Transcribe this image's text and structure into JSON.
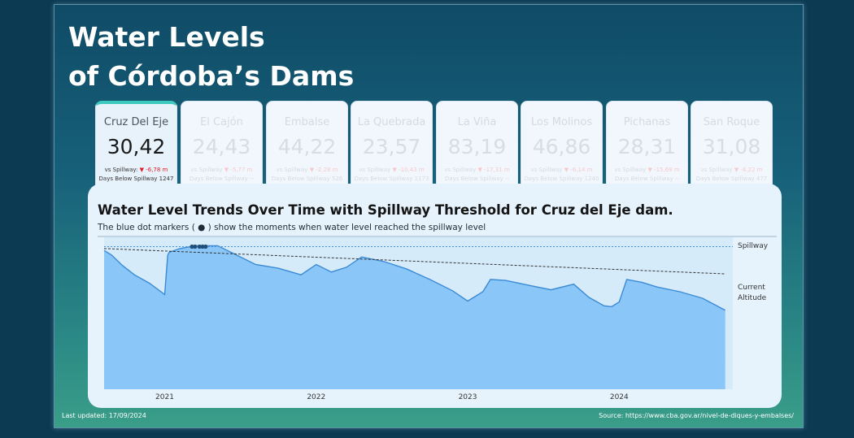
{
  "title": {
    "line1": "Water Levels",
    "line2": "of Córdoba’s Dams"
  },
  "dams": [
    {
      "name": "Cruz Del Eje",
      "value": "30,42",
      "vs_label": "vs Spillway:",
      "vs_value": "▼ -6,78 m",
      "days_label": "Days Below Spillway",
      "days_value": "1247",
      "active": true
    },
    {
      "name": "El Cajón",
      "value": "24,43",
      "vs_label": "vs Spillway",
      "vs_value": "▼ -5,77 m",
      "days_label": "Days Below Spillway",
      "days_value": "--",
      "active": false
    },
    {
      "name": "Embalse",
      "value": "44,22",
      "vs_label": "vs Spillway",
      "vs_value": "▼ -2,28 m",
      "days_label": "Days Below Spillway",
      "days_value": "526",
      "active": false
    },
    {
      "name": "La Quebrada",
      "value": "23,57",
      "vs_label": "vs Spillway",
      "vs_value": "▼ -10,43 m",
      "days_label": "Days Below Spillway",
      "days_value": "1173",
      "active": false
    },
    {
      "name": "La Viña",
      "value": "83,19",
      "vs_label": "vs Spillway",
      "vs_value": "▼ -17,31 m",
      "days_label": "Days Below Spillway",
      "days_value": "--",
      "active": false
    },
    {
      "name": "Los Molinos",
      "value": "46,86",
      "vs_label": "vs Spillway",
      "vs_value": "▼ -6,14 m",
      "days_label": "Days Below Spillway",
      "days_value": "1240",
      "active": false
    },
    {
      "name": "Pichanas",
      "value": "28,31",
      "vs_label": "vs Spillway",
      "vs_value": "▼ -15,69 m",
      "days_label": "Days Below Spillway",
      "days_value": "--",
      "active": false
    },
    {
      "name": "San Roque",
      "value": "31,08",
      "vs_label": "vs Spillway",
      "vs_value": "▼ -4,22 m",
      "days_label": "Days Below Spillway",
      "days_value": "477",
      "active": false
    }
  ],
  "chart": {
    "title": "Water Level Trends Over Time with Spillway Threshold for Cruz del Eje dam.",
    "subtitle": "The blue dot markers ( ● ) show the moments when water level reached the spillway level",
    "spillway_label": "Spillway",
    "current_label_1": "Current",
    "current_label_2": "Altitude"
  },
  "chart_data": {
    "type": "area",
    "x": [
      2020.6,
      2020.65,
      2020.72,
      2020.8,
      2020.9,
      2021.0,
      2021.02,
      2021.03,
      2021.1,
      2021.2,
      2021.35,
      2021.45,
      2021.6,
      2021.75,
      2021.9,
      2022.0,
      2022.1,
      2022.2,
      2022.3,
      2022.45,
      2022.6,
      2022.75,
      2022.9,
      2023.0,
      2023.1,
      2023.15,
      2023.25,
      2023.4,
      2023.55,
      2023.7,
      2023.8,
      2023.9,
      2023.95,
      2024.0,
      2024.05,
      2024.15,
      2024.25,
      2024.4,
      2024.55,
      2024.7
    ],
    "values": [
      36.8,
      36.3,
      35.2,
      34.2,
      33.3,
      32.1,
      36.3,
      36.6,
      37.0,
      37.3,
      37.3,
      36.5,
      35.3,
      34.9,
      34.2,
      35.3,
      34.5,
      35.0,
      36.1,
      35.6,
      34.8,
      33.7,
      32.5,
      31.4,
      32.4,
      33.7,
      33.6,
      33.1,
      32.6,
      33.2,
      31.8,
      30.9,
      30.8,
      31.3,
      33.7,
      33.4,
      32.9,
      32.4,
      31.7,
      30.42
    ],
    "spillway": 37.2,
    "trend": [
      [
        2020.6,
        37.0
      ],
      [
        2024.7,
        34.3
      ]
    ],
    "spillway_markers": [
      2021.18,
      2021.2,
      2021.23,
      2021.25,
      2021.27
    ],
    "x_ticks": [
      2021,
      2022,
      2023,
      2024
    ],
    "xlim": [
      2020.6,
      2024.75
    ],
    "ylim": [
      22.0,
      38.2
    ]
  },
  "footer": {
    "updated": "Last updated: 17/09/2024",
    "source": "Source: https://www.cba.gov.ar/nivel-de-diques-y-embalses/"
  },
  "colors": {
    "area_fill": "#8ac6f7",
    "area_line": "#3a8bd6",
    "spillway_line": "#4a90d9",
    "trend_line": "#333333",
    "marker": "#1f4e79",
    "accent": "#3ec9be",
    "down": "#e31b23"
  }
}
